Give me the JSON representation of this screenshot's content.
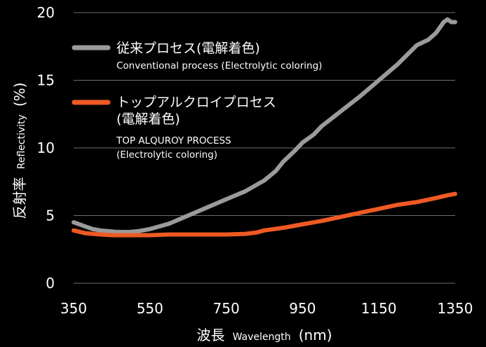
{
  "chart_data": {
    "type": "line",
    "xlabel": {
      "main": "波長",
      "sub": "Wavelength",
      "unit": "(nm)"
    },
    "ylabel": {
      "main": "反射率",
      "sub": "Reflectivity",
      "unit": "(%)"
    },
    "xlim": [
      350,
      1350
    ],
    "ylim": [
      0,
      20
    ],
    "xticks": [
      350,
      550,
      750,
      950,
      1150,
      1350
    ],
    "yticks": [
      0,
      5,
      10,
      15,
      20
    ],
    "grid": "horizontal",
    "legend_position": "top-left",
    "series": [
      {
        "name_lines": [
          "従来プロセス(電解着色)"
        ],
        "name_en_lines": [
          "Conventional process (Electrolytic coloring)"
        ],
        "color": "#9b9b9b",
        "x": [
          350,
          380,
          400,
          420,
          440,
          460,
          480,
          500,
          520,
          550,
          600,
          650,
          700,
          750,
          800,
          850,
          880,
          900,
          930,
          950,
          980,
          1000,
          1050,
          1100,
          1150,
          1200,
          1250,
          1280,
          1300,
          1320,
          1330,
          1340,
          1350
        ],
        "y": [
          4.5,
          4.2,
          4.0,
          3.9,
          3.85,
          3.8,
          3.78,
          3.8,
          3.85,
          4.0,
          4.4,
          5.0,
          5.6,
          6.2,
          6.8,
          7.6,
          8.3,
          9.0,
          9.8,
          10.4,
          11.0,
          11.6,
          12.7,
          13.8,
          15.0,
          16.2,
          17.6,
          18.0,
          18.5,
          19.3,
          19.5,
          19.3,
          19.3
        ]
      },
      {
        "name_lines": [
          "トップアルクロイプロセス",
          "(電解着色)"
        ],
        "name_en_lines": [
          "TOP ALQUROY PROCESS",
          "(Electrolytic coloring)"
        ],
        "color": "#ef5a24",
        "x": [
          350,
          380,
          420,
          450,
          500,
          550,
          600,
          650,
          700,
          750,
          800,
          830,
          850,
          900,
          950,
          1000,
          1050,
          1100,
          1150,
          1200,
          1250,
          1300,
          1330,
          1350
        ],
        "y": [
          3.9,
          3.7,
          3.6,
          3.55,
          3.55,
          3.55,
          3.6,
          3.6,
          3.6,
          3.6,
          3.65,
          3.75,
          3.9,
          4.1,
          4.35,
          4.6,
          4.9,
          5.2,
          5.5,
          5.8,
          6.0,
          6.3,
          6.5,
          6.6
        ]
      }
    ]
  }
}
